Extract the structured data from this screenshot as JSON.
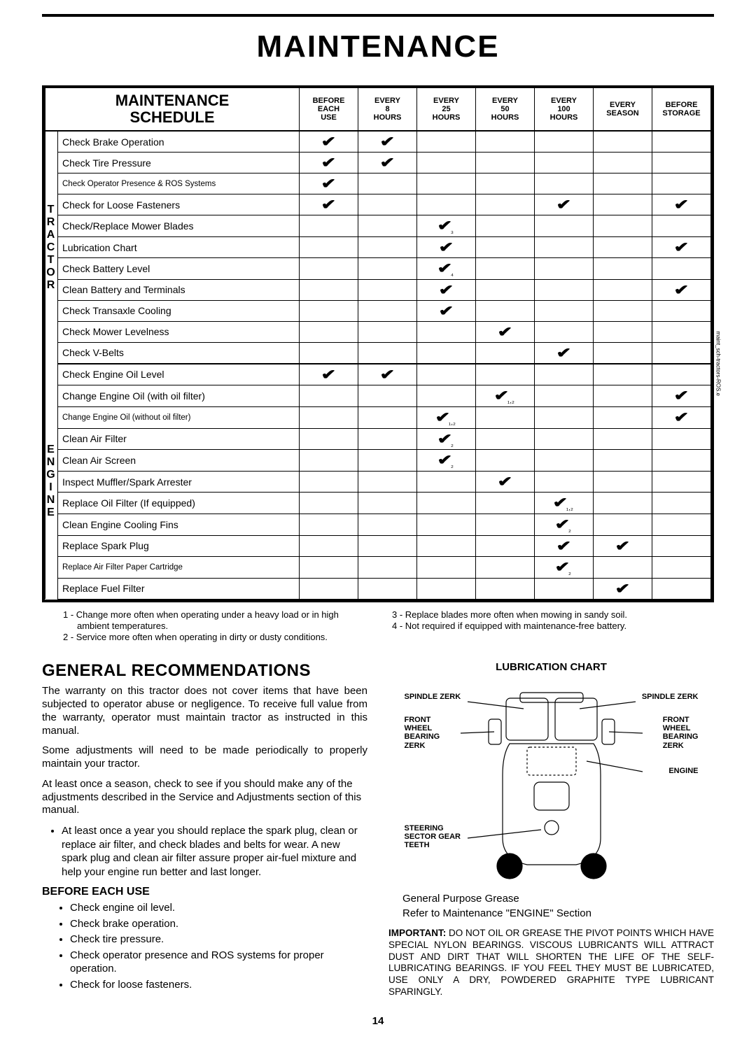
{
  "page_title": "MAINTENANCE",
  "table": {
    "title_line1": "MAINTENANCE",
    "title_line2": "SCHEDULE",
    "cols": [
      {
        "l1": "BEFORE",
        "l2": "EACH",
        "l3": "USE"
      },
      {
        "l1": "EVERY",
        "l2": "8",
        "l3": "HOURS"
      },
      {
        "l1": "EVERY",
        "l2": "25",
        "l3": "HOURS"
      },
      {
        "l1": "EVERY",
        "l2": "50",
        "l3": "HOURS"
      },
      {
        "l1": "EVERY",
        "l2": "100",
        "l3": "HOURS"
      },
      {
        "l1": "EVERY",
        "l2": "SEASON",
        "l3": ""
      },
      {
        "l1": "BEFORE",
        "l2": "STORAGE",
        "l3": ""
      }
    ],
    "sections": [
      {
        "label": "TRACTOR",
        "rows": [
          {
            "task": "Check Brake Operation",
            "marks": [
              "✔",
              "✔",
              "",
              "",
              "",
              "",
              ""
            ]
          },
          {
            "task": "Check Tire Pressure",
            "marks": [
              "✔",
              "✔",
              "",
              "",
              "",
              "",
              ""
            ]
          },
          {
            "task": "Check Operator Presence & ROS Systems",
            "small": true,
            "marks": [
              "✔",
              "",
              "",
              "",
              "",
              "",
              ""
            ]
          },
          {
            "task": "Check for Loose Fasteners",
            "marks": [
              "✔",
              "",
              "",
              "",
              "✔",
              "",
              "✔"
            ]
          },
          {
            "task": "Check/Replace Mower Blades",
            "marks": [
              "",
              "",
              "✔₃",
              "",
              "",
              "",
              ""
            ]
          },
          {
            "task": "Lubrication Chart",
            "marks": [
              "",
              "",
              "✔",
              "",
              "",
              "",
              "✔"
            ]
          },
          {
            "task": "Check Battery Level",
            "marks": [
              "",
              "",
              "✔₄",
              "",
              "",
              "",
              ""
            ]
          },
          {
            "task": "Clean Battery and Terminals",
            "marks": [
              "",
              "",
              "✔",
              "",
              "",
              "",
              "✔"
            ]
          },
          {
            "task": "Check Transaxle Cooling",
            "marks": [
              "",
              "",
              "✔",
              "",
              "",
              "",
              ""
            ]
          },
          {
            "task": "Check Mower Levelness",
            "marks": [
              "",
              "",
              "",
              "✔",
              "",
              "",
              ""
            ]
          },
          {
            "task": "Check V-Belts",
            "marks": [
              "",
              "",
              "",
              "",
              "✔",
              "",
              ""
            ]
          }
        ]
      },
      {
        "label": "ENGINE",
        "rows": [
          {
            "task": "Check Engine Oil Level",
            "marks": [
              "✔",
              "✔",
              "",
              "",
              "",
              "",
              ""
            ]
          },
          {
            "task": "Change Engine Oil (with oil filter)",
            "marks": [
              "",
              "",
              "",
              "✔₁,₂",
              "",
              "",
              "✔"
            ]
          },
          {
            "task": "Change Engine Oil (without oil filter)",
            "small": true,
            "marks": [
              "",
              "",
              "✔₁,₂",
              "",
              "",
              "",
              "✔"
            ]
          },
          {
            "task": "Clean Air Filter",
            "marks": [
              "",
              "",
              "✔₂",
              "",
              "",
              "",
              ""
            ]
          },
          {
            "task": "Clean Air Screen",
            "marks": [
              "",
              "",
              "✔₂",
              "",
              "",
              "",
              ""
            ]
          },
          {
            "task": "Inspect Muffler/Spark Arrester",
            "marks": [
              "",
              "",
              "",
              "✔",
              "",
              "",
              ""
            ]
          },
          {
            "task": "Replace Oil Filter (If equipped)",
            "marks": [
              "",
              "",
              "",
              "",
              "✔₁,₂",
              "",
              ""
            ]
          },
          {
            "task": "Clean Engine Cooling Fins",
            "marks": [
              "",
              "",
              "",
              "",
              "✔₂",
              "",
              ""
            ]
          },
          {
            "task": "Replace Spark Plug",
            "marks": [
              "",
              "",
              "",
              "",
              "✔",
              "✔",
              ""
            ]
          },
          {
            "task": "Replace Air Filter Paper Cartridge",
            "small": true,
            "marks": [
              "",
              "",
              "",
              "",
              "✔₂",
              "",
              ""
            ]
          },
          {
            "task": "Replace Fuel Filter",
            "marks": [
              "",
              "",
              "",
              "",
              "",
              "✔",
              ""
            ]
          }
        ]
      }
    ],
    "side_caption": "maint_sch-tractors-ROS.e"
  },
  "footnotes": {
    "left": [
      "1 - Change more often when operating under a heavy load or in high ambient temperatures.",
      "2 - Service more often when operating in dirty or dusty conditions."
    ],
    "right": [
      "3 - Replace blades more often when mowing in sandy soil.",
      "4 - Not required if equipped with maintenance-free battery."
    ]
  },
  "genrec": {
    "heading": "GENERAL RECOMMENDATIONS",
    "p1": "The warranty on this tractor does not cover items that have been subjected to operator abuse or negligence.  To receive full value from the warranty, operator must maintain tractor as instructed in this manual.",
    "p2": "Some adjustments will need to be made periodically to properly maintain your tractor.",
    "p3": "At least once a season, check to see if you should make any of the adjustments described in the Service and Adjustments section of this manual.",
    "bullet1": "At least once a year you should replace the spark plug, clean or replace air filter, and check blades and belts for wear.  A new spark plug and clean air filter assure proper air-fuel mixture and help your engine run better and last longer.",
    "beu_heading": "BEFORE EACH USE",
    "beu_items": [
      "Check engine oil level.",
      "Check brake operation.",
      "Check tire pressure.",
      "Check operator presence and ROS systems for proper operation.",
      "Check for loose fasteners."
    ]
  },
  "lube": {
    "title": "LUBRICATION CHART",
    "labels": {
      "spindle_l": "SPINDLE ZERK",
      "spindle_r": "SPINDLE ZERK",
      "fwb_l": "FRONT\nWHEEL\nBEARING\nZERK",
      "fwb_r": "FRONT\nWHEEL\nBEARING\nZERK",
      "engine": "ENGINE",
      "steering": "STEERING\nSECTOR GEAR\nTEETH"
    },
    "line1": "General Purpose Grease",
    "line2": "Refer to Maintenance \"ENGINE\" Section",
    "important_label": "IMPORTANT:",
    "important": "DO NOT OIL OR GREASE THE PIVOT POINTS WHICH HAVE SPECIAL NYLON BEARINGS.  VISCOUS LUBRICANTS WILL ATTRACT DUST AND DIRT THAT WILL SHORTEN THE LIFE OF THE SELF-LUBRICATING BEARINGS.  IF YOU FEEL THEY MUST BE LUBRICATED, USE ONLY A DRY, POWDERED GRAPHITE TYPE LUBRICANT SPARINGLY."
  },
  "page_number": "14"
}
